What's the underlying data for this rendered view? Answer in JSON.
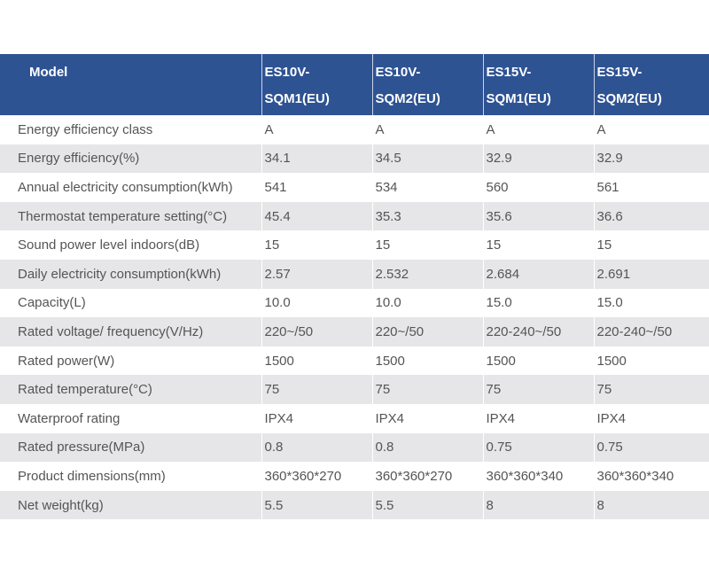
{
  "header": {
    "model_label": "Model",
    "models": [
      [
        "ES10V-",
        "SQM1(EU)"
      ],
      [
        "ES10V-",
        "SQM2(EU)"
      ],
      [
        "ES15V-",
        "SQM1(EU)"
      ],
      [
        "ES15V-",
        "SQM2(EU)"
      ]
    ]
  },
  "rows": [
    {
      "label": "Energy efficiency class",
      "values": [
        "A",
        "A",
        "A",
        "A"
      ]
    },
    {
      "label": "Energy efficiency(%)",
      "values": [
        "34.1",
        "34.5",
        "32.9",
        "32.9"
      ]
    },
    {
      "label": "Annual electricity consumption(kWh)",
      "values": [
        "541",
        "534",
        "560",
        "561"
      ]
    },
    {
      "label": "Thermostat temperature setting(°C)",
      "values": [
        "45.4",
        "35.3",
        "35.6",
        "36.6"
      ]
    },
    {
      "label": "Sound power level indoors(dB)",
      "values": [
        "15",
        "15",
        "15",
        "15"
      ]
    },
    {
      "label": "Daily electricity consumption(kWh)",
      "values": [
        "2.57",
        "2.532",
        "2.684",
        "2.691"
      ]
    },
    {
      "label": "Capacity(L)",
      "values": [
        "10.0",
        "10.0",
        "15.0",
        "15.0"
      ]
    },
    {
      "label": "Rated voltage/ frequency(V/Hz)",
      "values": [
        "220~/50",
        "220~/50",
        "220-240~/50",
        "220-240~/50"
      ]
    },
    {
      "label": "Rated power(W)",
      "values": [
        "1500",
        "1500",
        "1500",
        "1500"
      ]
    },
    {
      "label": "Rated temperature(°C)",
      "values": [
        "75",
        "75",
        "75",
        "75"
      ]
    },
    {
      "label": "Waterproof rating",
      "values": [
        "IPX4",
        "IPX4",
        "IPX4",
        "IPX4"
      ]
    },
    {
      "label": "Rated pressure(MPa)",
      "values": [
        "0.8",
        "0.8",
        "0.75",
        "0.75"
      ]
    },
    {
      "label": "Product dimensions(mm)",
      "values": [
        "360*360*270",
        " 360*360*270",
        " 360*360*340",
        "360*360*340"
      ]
    },
    {
      "label": "Net weight(kg)",
      "values": [
        "5.5",
        "5.5",
        "8",
        "8"
      ]
    }
  ]
}
